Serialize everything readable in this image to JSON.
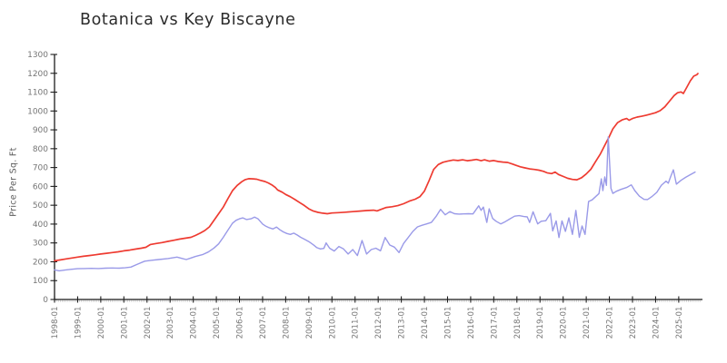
{
  "page": {
    "background": "#ffffff"
  },
  "chart_data": {
    "type": "line",
    "title": "Botanica vs Key Biscayne",
    "ylabel": "Price Per Sq. Ft",
    "style": "xkcd-hand-drawn",
    "grid": false,
    "legend": "none",
    "colors": {
      "red_series": "#ee3b31",
      "blue_series": "#9a9ae8",
      "axis": "#1c1c1c",
      "tick_label": "#757575",
      "minor_tick": "#c9c9c9",
      "title": "#2b2b2b"
    },
    "x_axis": {
      "unit": "year-month",
      "tick_interval": "1 year",
      "tick_labels": [
        "1998-01",
        "1999-01",
        "2000-01",
        "2001-01",
        "2002-01",
        "2003-01",
        "2004-01",
        "2005-01",
        "2006-01",
        "2007-01",
        "2008-01",
        "2009-01",
        "2010-01",
        "2011-01",
        "2012-01",
        "2013-01",
        "2014-01",
        "2015-01",
        "2016-01",
        "2017-01",
        "2018-01",
        "2019-01",
        "2020-01",
        "2021-01",
        "2022-01",
        "2023-01",
        "2024-01",
        "2025-01"
      ],
      "start_year": 1998,
      "end_year": 2026.05,
      "minor_ticks": "monthly"
    },
    "y_axis": {
      "min": 0,
      "max": 1300,
      "tick_step": 100,
      "ticks": [
        0,
        100,
        200,
        300,
        400,
        500,
        600,
        700,
        800,
        900,
        1000,
        1100,
        1200,
        1300
      ]
    },
    "series": [
      {
        "name": "red-line",
        "color_key": "red_series",
        "line_width": 1.7,
        "points": [
          [
            1998.0,
            205
          ],
          [
            1998.25,
            210
          ],
          [
            1998.5,
            215
          ],
          [
            1998.75,
            220
          ],
          [
            1999.0,
            225
          ],
          [
            1999.25,
            229
          ],
          [
            1999.5,
            233
          ],
          [
            1999.75,
            237
          ],
          [
            2000.0,
            241
          ],
          [
            2000.25,
            245
          ],
          [
            2000.5,
            249
          ],
          [
            2000.75,
            253
          ],
          [
            2001.0,
            258
          ],
          [
            2001.25,
            262
          ],
          [
            2001.5,
            267
          ],
          [
            2001.75,
            272
          ],
          [
            2001.95,
            277
          ],
          [
            2002.15,
            292
          ],
          [
            2002.4,
            297
          ],
          [
            2002.65,
            302
          ],
          [
            2002.9,
            308
          ],
          [
            2003.15,
            314
          ],
          [
            2003.4,
            320
          ],
          [
            2003.65,
            325
          ],
          [
            2003.9,
            330
          ],
          [
            2004.1,
            340
          ],
          [
            2004.3,
            352
          ],
          [
            2004.5,
            366
          ],
          [
            2004.7,
            385
          ],
          [
            2004.9,
            420
          ],
          [
            2005.1,
            455
          ],
          [
            2005.3,
            490
          ],
          [
            2005.5,
            535
          ],
          [
            2005.7,
            578
          ],
          [
            2005.9,
            605
          ],
          [
            2006.1,
            625
          ],
          [
            2006.25,
            636
          ],
          [
            2006.4,
            641
          ],
          [
            2006.6,
            640
          ],
          [
            2006.75,
            638
          ],
          [
            2006.9,
            632
          ],
          [
            2007.1,
            626
          ],
          [
            2007.25,
            618
          ],
          [
            2007.4,
            608
          ],
          [
            2007.55,
            594
          ],
          [
            2007.65,
            581
          ],
          [
            2007.85,
            569
          ],
          [
            2008.0,
            557
          ],
          [
            2008.2,
            545
          ],
          [
            2008.4,
            530
          ],
          [
            2008.6,
            514
          ],
          [
            2008.8,
            499
          ],
          [
            2009.0,
            481
          ],
          [
            2009.2,
            469
          ],
          [
            2009.4,
            462
          ],
          [
            2009.6,
            458
          ],
          [
            2009.8,
            455
          ],
          [
            2010.0,
            459
          ],
          [
            2010.3,
            461
          ],
          [
            2010.6,
            463
          ],
          [
            2010.9,
            466
          ],
          [
            2011.2,
            469
          ],
          [
            2011.5,
            472
          ],
          [
            2011.8,
            474
          ],
          [
            2011.95,
            470
          ],
          [
            2012.1,
            477
          ],
          [
            2012.35,
            488
          ],
          [
            2012.6,
            492
          ],
          [
            2012.85,
            498
          ],
          [
            2013.1,
            508
          ],
          [
            2013.35,
            522
          ],
          [
            2013.6,
            532
          ],
          [
            2013.8,
            545
          ],
          [
            2014.0,
            575
          ],
          [
            2014.2,
            630
          ],
          [
            2014.4,
            690
          ],
          [
            2014.6,
            716
          ],
          [
            2014.8,
            728
          ],
          [
            2015.0,
            734
          ],
          [
            2015.25,
            740
          ],
          [
            2015.45,
            737
          ],
          [
            2015.65,
            741
          ],
          [
            2015.85,
            736
          ],
          [
            2016.05,
            739
          ],
          [
            2016.25,
            743
          ],
          [
            2016.45,
            736
          ],
          [
            2016.6,
            741
          ],
          [
            2016.8,
            734
          ],
          [
            2017.0,
            737
          ],
          [
            2017.2,
            732
          ],
          [
            2017.4,
            729
          ],
          [
            2017.6,
            727
          ],
          [
            2017.8,
            719
          ],
          [
            2017.95,
            712
          ],
          [
            2018.15,
            704
          ],
          [
            2018.35,
            698
          ],
          [
            2018.55,
            693
          ],
          [
            2018.75,
            690
          ],
          [
            2018.95,
            686
          ],
          [
            2019.15,
            680
          ],
          [
            2019.3,
            672
          ],
          [
            2019.5,
            668
          ],
          [
            2019.65,
            676
          ],
          [
            2019.8,
            663
          ],
          [
            2020.0,
            653
          ],
          [
            2020.2,
            643
          ],
          [
            2020.4,
            637
          ],
          [
            2020.6,
            635
          ],
          [
            2020.8,
            646
          ],
          [
            2021.0,
            666
          ],
          [
            2021.2,
            691
          ],
          [
            2021.4,
            731
          ],
          [
            2021.6,
            770
          ],
          [
            2021.8,
            818
          ],
          [
            2022.0,
            866
          ],
          [
            2022.15,
            905
          ],
          [
            2022.35,
            938
          ],
          [
            2022.55,
            953
          ],
          [
            2022.75,
            960
          ],
          [
            2022.85,
            951
          ],
          [
            2023.0,
            960
          ],
          [
            2023.2,
            968
          ],
          [
            2023.4,
            972
          ],
          [
            2023.6,
            978
          ],
          [
            2023.8,
            984
          ],
          [
            2024.0,
            991
          ],
          [
            2024.2,
            1002
          ],
          [
            2024.4,
            1022
          ],
          [
            2024.6,
            1052
          ],
          [
            2024.8,
            1082
          ],
          [
            2024.95,
            1097
          ],
          [
            2025.1,
            1101
          ],
          [
            2025.2,
            1093
          ],
          [
            2025.35,
            1126
          ],
          [
            2025.5,
            1160
          ],
          [
            2025.65,
            1185
          ],
          [
            2025.78,
            1192
          ],
          [
            2025.83,
            1199
          ]
        ]
      },
      {
        "name": "blue-line",
        "color_key": "blue_series",
        "line_width": 1.4,
        "points": [
          [
            1998.0,
            157
          ],
          [
            1998.2,
            152
          ],
          [
            1998.45,
            156
          ],
          [
            1998.7,
            160
          ],
          [
            1999.0,
            163
          ],
          [
            1999.3,
            164
          ],
          [
            1999.6,
            165
          ],
          [
            1999.9,
            164
          ],
          [
            2000.2,
            166
          ],
          [
            2000.5,
            167
          ],
          [
            2000.8,
            166
          ],
          [
            2001.05,
            168
          ],
          [
            2001.3,
            172
          ],
          [
            2001.6,
            188
          ],
          [
            2001.9,
            203
          ],
          [
            2002.2,
            208
          ],
          [
            2002.5,
            212
          ],
          [
            2002.9,
            217
          ],
          [
            2003.3,
            225
          ],
          [
            2003.5,
            218
          ],
          [
            2003.7,
            212
          ],
          [
            2003.9,
            220
          ],
          [
            2004.1,
            228
          ],
          [
            2004.4,
            238
          ],
          [
            2004.65,
            252
          ],
          [
            2004.9,
            273
          ],
          [
            2005.1,
            295
          ],
          [
            2005.3,
            330
          ],
          [
            2005.5,
            368
          ],
          [
            2005.7,
            405
          ],
          [
            2005.85,
            420
          ],
          [
            2006.0,
            428
          ],
          [
            2006.15,
            433
          ],
          [
            2006.3,
            424
          ],
          [
            2006.5,
            428
          ],
          [
            2006.65,
            437
          ],
          [
            2006.8,
            428
          ],
          [
            2007.0,
            400
          ],
          [
            2007.15,
            388
          ],
          [
            2007.3,
            380
          ],
          [
            2007.45,
            374
          ],
          [
            2007.6,
            384
          ],
          [
            2007.75,
            370
          ],
          [
            2007.9,
            358
          ],
          [
            2008.05,
            350
          ],
          [
            2008.2,
            345
          ],
          [
            2008.35,
            352
          ],
          [
            2008.5,
            342
          ],
          [
            2008.65,
            330
          ],
          [
            2008.8,
            320
          ],
          [
            2009.0,
            307
          ],
          [
            2009.2,
            290
          ],
          [
            2009.35,
            275
          ],
          [
            2009.5,
            268
          ],
          [
            2009.65,
            271
          ],
          [
            2009.75,
            300
          ],
          [
            2009.9,
            272
          ],
          [
            2010.1,
            257
          ],
          [
            2010.3,
            281
          ],
          [
            2010.5,
            268
          ],
          [
            2010.7,
            241
          ],
          [
            2010.9,
            265
          ],
          [
            2011.1,
            233
          ],
          [
            2011.3,
            313
          ],
          [
            2011.5,
            241
          ],
          [
            2011.7,
            265
          ],
          [
            2011.9,
            272
          ],
          [
            2012.1,
            258
          ],
          [
            2012.3,
            329
          ],
          [
            2012.5,
            289
          ],
          [
            2012.7,
            278
          ],
          [
            2012.9,
            249
          ],
          [
            2013.1,
            297
          ],
          [
            2013.3,
            329
          ],
          [
            2013.5,
            361
          ],
          [
            2013.7,
            385
          ],
          [
            2013.9,
            394
          ],
          [
            2014.1,
            401
          ],
          [
            2014.3,
            409
          ],
          [
            2014.5,
            440
          ],
          [
            2014.7,
            478
          ],
          [
            2014.9,
            449
          ],
          [
            2015.1,
            466
          ],
          [
            2015.3,
            455
          ],
          [
            2015.5,
            453
          ],
          [
            2015.7,
            454
          ],
          [
            2015.9,
            455
          ],
          [
            2016.1,
            454
          ],
          [
            2016.35,
            497
          ],
          [
            2016.45,
            473
          ],
          [
            2016.55,
            490
          ],
          [
            2016.7,
            409
          ],
          [
            2016.8,
            481
          ],
          [
            2016.95,
            430
          ],
          [
            2017.1,
            415
          ],
          [
            2017.3,
            401
          ],
          [
            2017.5,
            413
          ],
          [
            2017.7,
            428
          ],
          [
            2017.9,
            442
          ],
          [
            2018.1,
            445
          ],
          [
            2018.3,
            440
          ],
          [
            2018.45,
            438
          ],
          [
            2018.55,
            409
          ],
          [
            2018.7,
            465
          ],
          [
            2018.9,
            401
          ],
          [
            2019.05,
            415
          ],
          [
            2019.25,
            418
          ],
          [
            2019.45,
            457
          ],
          [
            2019.55,
            364
          ],
          [
            2019.7,
            417
          ],
          [
            2019.82,
            329
          ],
          [
            2019.95,
            417
          ],
          [
            2020.1,
            361
          ],
          [
            2020.25,
            433
          ],
          [
            2020.4,
            345
          ],
          [
            2020.55,
            473
          ],
          [
            2020.7,
            330
          ],
          [
            2020.82,
            390
          ],
          [
            2020.95,
            345
          ],
          [
            2021.1,
            520
          ],
          [
            2021.25,
            528
          ],
          [
            2021.4,
            545
          ],
          [
            2021.55,
            562
          ],
          [
            2021.65,
            640
          ],
          [
            2021.72,
            578
          ],
          [
            2021.8,
            650
          ],
          [
            2021.87,
            605
          ],
          [
            2021.95,
            862
          ],
          [
            2022.07,
            590
          ],
          [
            2022.15,
            563
          ],
          [
            2022.3,
            574
          ],
          [
            2022.5,
            584
          ],
          [
            2022.75,
            594
          ],
          [
            2022.95,
            608
          ],
          [
            2023.1,
            578
          ],
          [
            2023.3,
            548
          ],
          [
            2023.5,
            531
          ],
          [
            2023.65,
            530
          ],
          [
            2023.85,
            547
          ],
          [
            2024.05,
            568
          ],
          [
            2024.25,
            606
          ],
          [
            2024.45,
            628
          ],
          [
            2024.55,
            617
          ],
          [
            2024.65,
            652
          ],
          [
            2024.77,
            688
          ],
          [
            2024.9,
            612
          ],
          [
            2025.1,
            632
          ],
          [
            2025.3,
            648
          ],
          [
            2025.5,
            662
          ],
          [
            2025.71,
            676
          ]
        ]
      }
    ]
  }
}
